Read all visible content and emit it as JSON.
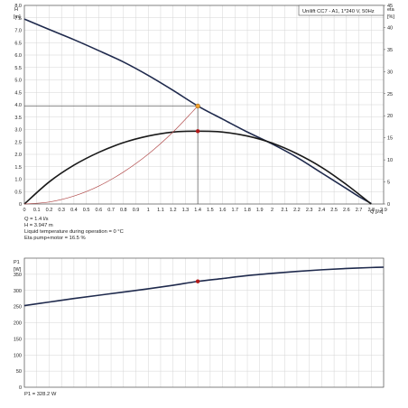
{
  "header_box": "Unilift CC7 - A1, 1*240 V, 50Hz",
  "info": {
    "q": "Q = 1.4 l/s",
    "h": "H = 3.947 m",
    "temp": "Liquid temperature during operation = 0 °C",
    "eta": "Eta pump+motor = 16.5 %",
    "p1": "P1 = 328.2 W"
  },
  "chart_data": [
    {
      "type": "line",
      "ylabel_left": [
        "H",
        "[m]"
      ],
      "ylabel_right": [
        "eta",
        "[%]"
      ],
      "xlabel": "Q [l/s]",
      "xlim": [
        0,
        2.9
      ],
      "ylim_left": [
        0,
        8.0
      ],
      "ylim_right": [
        0,
        45
      ],
      "x_ticks": [
        0,
        0.1,
        0.2,
        0.3,
        0.4,
        0.5,
        0.6,
        0.7,
        0.8,
        0.9,
        1.0,
        1.1,
        1.2,
        1.3,
        1.4,
        1.5,
        1.6,
        1.7,
        1.8,
        1.9,
        2.0,
        2.1,
        2.2,
        2.3,
        2.4,
        2.5,
        2.6,
        2.7,
        2.8,
        2.9
      ],
      "x_tick_labels": [
        "0",
        "0.1",
        "0.2",
        "0.3",
        "0.4",
        "0.5",
        "0.6",
        "0.7",
        "0.8",
        "0.9",
        "1",
        "1.1",
        "1.2",
        "1.3",
        "1.4",
        "1.5",
        "1.6",
        "1.7",
        "1.8",
        "1.9",
        "2",
        "2.1",
        "2.2",
        "2.3",
        "2.4",
        "2.5",
        "2.6",
        "2.7",
        "2.8",
        "2.9"
      ],
      "y_ticks_left": [
        0,
        0.5,
        1.0,
        1.5,
        2.0,
        2.5,
        3.0,
        3.5,
        4.0,
        4.5,
        5.0,
        5.5,
        6.0,
        6.5,
        7.0,
        7.5,
        8.0
      ],
      "y_tick_labels_left": [
        "0",
        "0.5",
        "1.0",
        "1.5",
        "2.0",
        "2.5",
        "3.0",
        "3.5",
        "4.0",
        "4.5",
        "5.0",
        "5.5",
        "6.0",
        "6.5",
        "7.0",
        "7.5",
        "8.0"
      ],
      "y_ticks_right": [
        0,
        5,
        10,
        15,
        20,
        25,
        30,
        35,
        40,
        45
      ],
      "y_tick_labels_right": [
        "0",
        "5",
        "10",
        "15",
        "20",
        "25",
        "30",
        "35",
        "40",
        "45"
      ],
      "series": [
        {
          "axis": "left",
          "color": "#1f2a4d",
          "x": [
            0,
            0.2,
            0.4,
            0.6,
            0.8,
            1.0,
            1.2,
            1.4,
            1.6,
            1.8,
            2.0,
            2.2,
            2.4,
            2.6,
            2.7,
            2.8
          ],
          "values": [
            7.45,
            7.03,
            6.62,
            6.18,
            5.72,
            5.18,
            4.58,
            3.95,
            3.42,
            2.9,
            2.42,
            1.88,
            1.25,
            0.62,
            0.3,
            0.02
          ]
        },
        {
          "axis": "right",
          "color": "#1a1a1a",
          "x": [
            0,
            0.2,
            0.4,
            0.6,
            0.8,
            1.0,
            1.2,
            1.4,
            1.6,
            1.8,
            2.0,
            2.2,
            2.4,
            2.6,
            2.8
          ],
          "values": [
            0,
            5.0,
            8.8,
            11.7,
            13.9,
            15.4,
            16.3,
            16.5,
            16.3,
            15.4,
            13.8,
            11.4,
            8.3,
            4.4,
            0
          ]
        },
        {
          "axis": "left",
          "color": "#b14a4a",
          "x": [
            0,
            0.2,
            0.4,
            0.6,
            0.8,
            1.0,
            1.2,
            1.4
          ],
          "values": [
            0,
            0.08,
            0.32,
            0.72,
            1.29,
            2.01,
            2.9,
            3.95
          ]
        }
      ],
      "guides": {
        "x": 1.4,
        "y": 3.947,
        "color": "#555555"
      },
      "operating_point_h": {
        "x": 1.4,
        "y": 3.947,
        "color": "#f0a030"
      },
      "operating_point_eta": {
        "x": 1.4,
        "y": 16.5,
        "color": "#b01818"
      }
    },
    {
      "type": "line",
      "ylabel_left": [
        "P1",
        "[W]"
      ],
      "xlim": [
        0,
        2.9
      ],
      "ylim": [
        0,
        400
      ],
      "y_ticks": [
        0,
        50,
        100,
        150,
        200,
        250,
        300,
        350
      ],
      "y_tick_labels": [
        "0",
        "50",
        "100",
        "150",
        "200",
        "250",
        "300",
        "350"
      ],
      "series": [
        {
          "color": "#1f2a4d",
          "x": [
            0,
            0.2,
            0.4,
            0.6,
            0.8,
            1.0,
            1.2,
            1.4,
            1.6,
            1.8,
            2.0,
            2.2,
            2.4,
            2.6,
            2.8,
            2.9
          ],
          "values": [
            253,
            264,
            275,
            285,
            295,
            305,
            316,
            328,
            337,
            346,
            353,
            359,
            364,
            368,
            371,
            372
          ]
        }
      ],
      "operating_point": {
        "x": 1.4,
        "y": 328.2,
        "color": "#b01818"
      }
    }
  ]
}
